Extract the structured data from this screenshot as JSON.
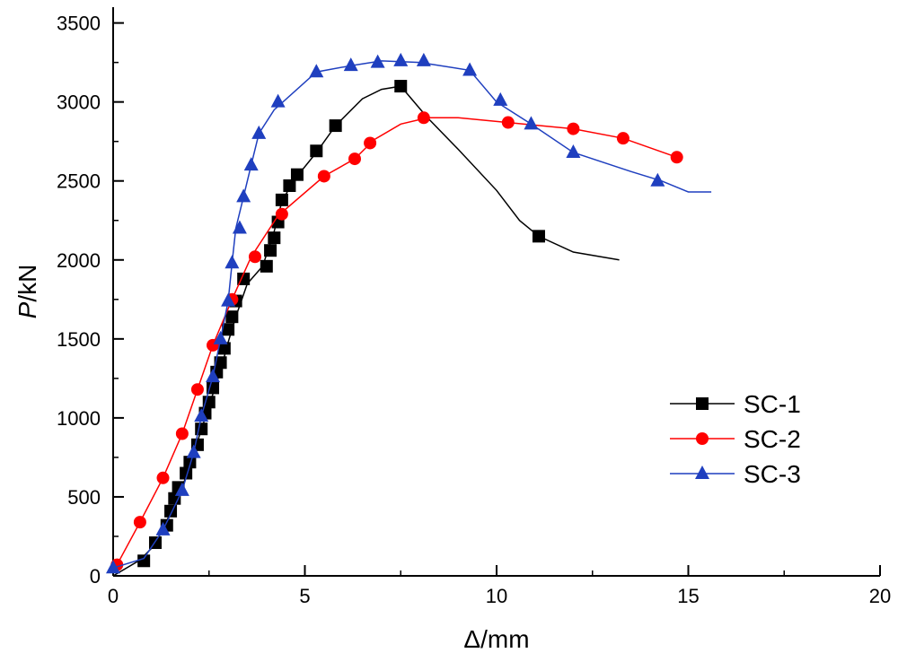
{
  "chart_data": {
    "type": "line",
    "title": "",
    "xlabel_symbol": "Δ",
    "xlabel_unit": "/mm",
    "ylabel_symbol": "P",
    "ylabel_unit": "/kN",
    "xlim": [
      0,
      20
    ],
    "ylim": [
      0,
      3600
    ],
    "xticks": [
      0,
      5,
      10,
      15,
      20
    ],
    "yticks": [
      0,
      500,
      1000,
      1500,
      2000,
      2500,
      3000,
      3500
    ],
    "grid": false,
    "legend_position": "right",
    "series": [
      {
        "name": "SC-1",
        "color": "#000000",
        "marker": "square",
        "line": [
          [
            0,
            0
          ],
          [
            0.7,
            100
          ],
          [
            1.1,
            200
          ],
          [
            1.3,
            300
          ],
          [
            1.6,
            450
          ],
          [
            1.8,
            560
          ],
          [
            2.0,
            700
          ],
          [
            2.2,
            850
          ],
          [
            2.4,
            1000
          ],
          [
            2.6,
            1150
          ],
          [
            2.8,
            1300
          ],
          [
            3.0,
            1480
          ],
          [
            3.2,
            1640
          ],
          [
            3.5,
            1850
          ],
          [
            3.9,
            1960
          ],
          [
            4.2,
            2180
          ],
          [
            4.4,
            2370
          ],
          [
            4.7,
            2500
          ],
          [
            5.3,
            2680
          ],
          [
            5.8,
            2850
          ],
          [
            6.5,
            3020
          ],
          [
            7.0,
            3080
          ],
          [
            7.5,
            3100
          ],
          [
            8.2,
            2900
          ],
          [
            9.0,
            2700
          ],
          [
            10.0,
            2440
          ],
          [
            10.6,
            2250
          ],
          [
            11.1,
            2150
          ],
          [
            12.0,
            2050
          ],
          [
            13.2,
            2000
          ]
        ],
        "points": [
          [
            0.8,
            95
          ],
          [
            1.1,
            210
          ],
          [
            1.4,
            320
          ],
          [
            1.5,
            410
          ],
          [
            1.6,
            490
          ],
          [
            1.7,
            560
          ],
          [
            1.9,
            650
          ],
          [
            2.0,
            720
          ],
          [
            2.2,
            830
          ],
          [
            2.3,
            930
          ],
          [
            2.4,
            1030
          ],
          [
            2.5,
            1100
          ],
          [
            2.6,
            1190
          ],
          [
            2.7,
            1290
          ],
          [
            2.8,
            1350
          ],
          [
            2.9,
            1440
          ],
          [
            3.0,
            1560
          ],
          [
            3.1,
            1640
          ],
          [
            3.2,
            1740
          ],
          [
            3.4,
            1880
          ],
          [
            4.0,
            1960
          ],
          [
            4.1,
            2060
          ],
          [
            4.2,
            2140
          ],
          [
            4.3,
            2240
          ],
          [
            4.4,
            2380
          ],
          [
            4.6,
            2470
          ],
          [
            4.8,
            2540
          ],
          [
            5.3,
            2690
          ],
          [
            5.8,
            2850
          ],
          [
            7.5,
            3100
          ],
          [
            11.1,
            2150
          ]
        ]
      },
      {
        "name": "SC-2",
        "color": "#ff0000",
        "marker": "circle",
        "line": [
          [
            0.1,
            70
          ],
          [
            0.7,
            340
          ],
          [
            1.3,
            620
          ],
          [
            1.8,
            900
          ],
          [
            2.2,
            1180
          ],
          [
            2.6,
            1460
          ],
          [
            3.1,
            1750
          ],
          [
            3.6,
            2020
          ],
          [
            4.3,
            2280
          ],
          [
            5.5,
            2530
          ],
          [
            6.3,
            2640
          ],
          [
            6.8,
            2760
          ],
          [
            7.5,
            2860
          ],
          [
            8.2,
            2900
          ],
          [
            9.0,
            2900
          ],
          [
            10.3,
            2870
          ],
          [
            12.0,
            2830
          ],
          [
            13.3,
            2770
          ],
          [
            14.7,
            2650
          ]
        ],
        "points": [
          [
            0.1,
            70
          ],
          [
            0.7,
            340
          ],
          [
            1.3,
            620
          ],
          [
            1.8,
            900
          ],
          [
            2.2,
            1180
          ],
          [
            2.6,
            1460
          ],
          [
            3.1,
            1750
          ],
          [
            3.7,
            2020
          ],
          [
            4.4,
            2290
          ],
          [
            5.5,
            2530
          ],
          [
            6.3,
            2640
          ],
          [
            6.7,
            2740
          ],
          [
            8.1,
            2900
          ],
          [
            10.3,
            2870
          ],
          [
            12.0,
            2830
          ],
          [
            13.3,
            2770
          ],
          [
            14.7,
            2650
          ]
        ]
      },
      {
        "name": "SC-3",
        "color": "#1f3fbf",
        "marker": "triangle",
        "line": [
          [
            0,
            50
          ],
          [
            0.8,
            110
          ],
          [
            1.3,
            290
          ],
          [
            1.8,
            540
          ],
          [
            2.1,
            780
          ],
          [
            2.3,
            1010
          ],
          [
            2.6,
            1260
          ],
          [
            2.8,
            1500
          ],
          [
            3.0,
            1740
          ],
          [
            3.1,
            1980
          ],
          [
            3.2,
            2200
          ],
          [
            3.4,
            2400
          ],
          [
            3.6,
            2600
          ],
          [
            3.8,
            2800
          ],
          [
            4.2,
            2950
          ],
          [
            5.3,
            3190
          ],
          [
            6.2,
            3230
          ],
          [
            7.0,
            3260
          ],
          [
            8.0,
            3250
          ],
          [
            9.3,
            3200
          ],
          [
            10.0,
            3000
          ],
          [
            10.9,
            2860
          ],
          [
            12.0,
            2680
          ],
          [
            13.5,
            2560
          ],
          [
            14.3,
            2500
          ],
          [
            15.0,
            2430
          ],
          [
            15.6,
            2430
          ]
        ],
        "points": [
          [
            0,
            50
          ],
          [
            1.3,
            290
          ],
          [
            1.8,
            540
          ],
          [
            2.1,
            780
          ],
          [
            2.3,
            1010
          ],
          [
            2.6,
            1260
          ],
          [
            2.8,
            1500
          ],
          [
            3.0,
            1740
          ],
          [
            3.1,
            1980
          ],
          [
            3.3,
            2200
          ],
          [
            3.4,
            2400
          ],
          [
            3.6,
            2600
          ],
          [
            3.8,
            2800
          ],
          [
            4.3,
            3000
          ],
          [
            5.3,
            3190
          ],
          [
            6.2,
            3230
          ],
          [
            6.9,
            3250
          ],
          [
            7.5,
            3260
          ],
          [
            8.1,
            3260
          ],
          [
            9.3,
            3200
          ],
          [
            10.1,
            3010
          ],
          [
            10.9,
            2860
          ],
          [
            12.0,
            2680
          ],
          [
            14.2,
            2500
          ]
        ]
      }
    ]
  }
}
